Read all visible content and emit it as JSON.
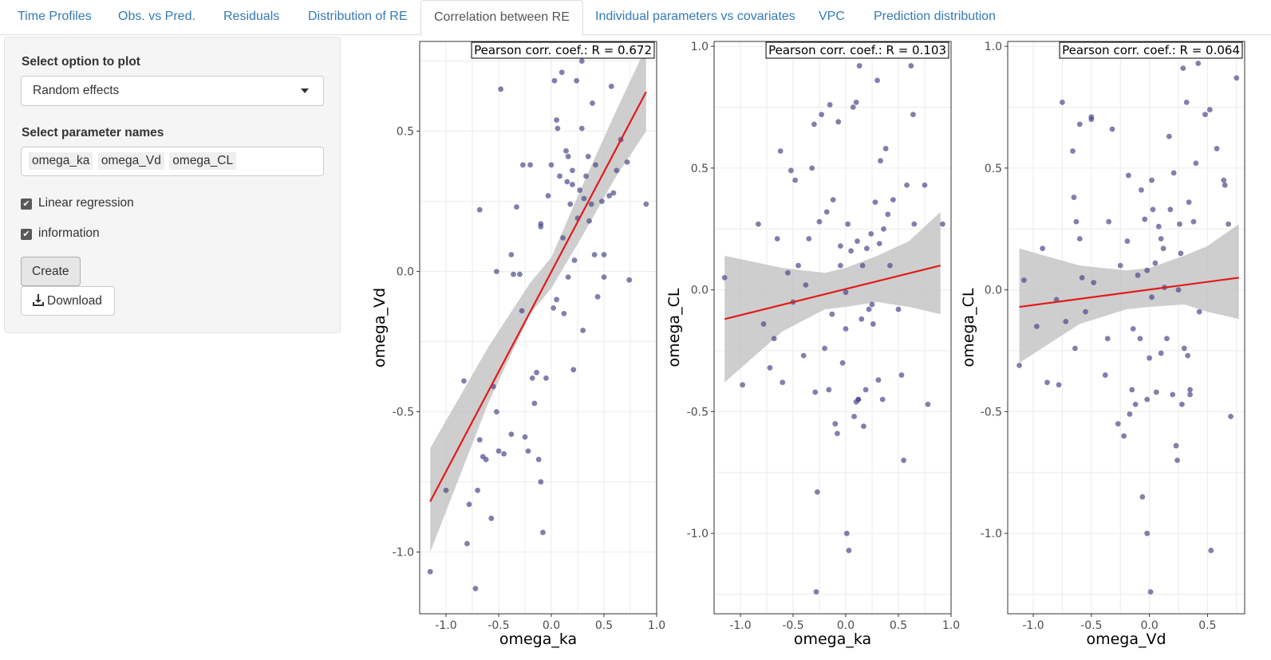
{
  "tabs": [
    {
      "label": "Time Profiles"
    },
    {
      "label": "Obs. vs Pred."
    },
    {
      "label": "Residuals"
    },
    {
      "label": "Distribution of RE"
    },
    {
      "label": "Correlation between RE"
    },
    {
      "label": "Individual parameters vs covariates"
    },
    {
      "label": "VPC"
    },
    {
      "label": "Prediction distribution"
    }
  ],
  "active_tab": "Correlation between RE",
  "sidebar": {
    "option_label": "Select option to plot",
    "option_value": "Random effects",
    "params_label": "Select parameter names",
    "params": [
      "omega_ka",
      "omega_Vd",
      "omega_CL"
    ],
    "linreg_label": "Linear regression",
    "linreg_checked": true,
    "info_label": "information",
    "info_checked": true,
    "create_label": "Create",
    "download_label": "Download"
  },
  "colors": {
    "points": "#4a4a8a",
    "regression_line": "#e31a1c",
    "confidence_band": "#bdbdbd",
    "link": "#337ab7"
  },
  "chart_data": [
    {
      "type": "scatter",
      "annotation": "Pearson corr. coef.: R = 0.672",
      "xlabel": "omega_ka",
      "ylabel": "omega_Vd",
      "xlim": [
        -1.25,
        1.0
      ],
      "ylim": [
        -1.22,
        0.82
      ],
      "xticks": [
        "-1.0",
        "-0.5",
        "0.0",
        "0.5",
        "1.0"
      ],
      "xtick_values": [
        -1.0,
        -0.5,
        0.0,
        0.5,
        1.0
      ],
      "yticks": [
        "-1.0",
        "-0.5",
        "0.0",
        "0.5"
      ],
      "ytick_values": [
        -1.0,
        -0.5,
        0.0,
        0.5
      ],
      "grid": true,
      "regression": {
        "x": [
          -1.15,
          0.9
        ],
        "y": [
          -0.82,
          0.64
        ]
      },
      "band_upper": [
        [
          -1.15,
          -0.63
        ],
        [
          -0.6,
          -0.27
        ],
        [
          -0.2,
          -0.04
        ],
        [
          0.0,
          0.05
        ],
        [
          0.3,
          0.31
        ],
        [
          0.6,
          0.56
        ],
        [
          0.9,
          0.8
        ]
      ],
      "band_lower": [
        [
          -1.15,
          -1.0
        ],
        [
          -0.6,
          -0.47
        ],
        [
          -0.2,
          -0.15
        ],
        [
          0.0,
          -0.06
        ],
        [
          0.3,
          0.13
        ],
        [
          0.6,
          0.33
        ],
        [
          0.9,
          0.5
        ]
      ],
      "points": [
        [
          -1.15,
          -1.07
        ],
        [
          -1.0,
          -0.78
        ],
        [
          -0.83,
          -0.39
        ],
        [
          -0.8,
          -0.97
        ],
        [
          -0.78,
          -0.83
        ],
        [
          -0.72,
          -1.13
        ],
        [
          -0.7,
          -0.78
        ],
        [
          -0.68,
          0.22
        ],
        [
          -0.68,
          -0.6
        ],
        [
          -0.65,
          -0.66
        ],
        [
          -0.62,
          -0.67
        ],
        [
          -0.57,
          -0.88
        ],
        [
          -0.55,
          -0.41
        ],
        [
          -0.52,
          -0.5
        ],
        [
          -0.5,
          -0.64
        ],
        [
          -0.48,
          0.65
        ],
        [
          -0.45,
          -0.65
        ],
        [
          -0.38,
          0.06
        ],
        [
          -0.36,
          -0.01
        ],
        [
          -0.33,
          0.23
        ],
        [
          -0.3,
          -0.01
        ],
        [
          -0.27,
          0.38
        ],
        [
          -0.25,
          -0.59
        ],
        [
          -0.22,
          -0.64
        ],
        [
          -0.2,
          0.38
        ],
        [
          -0.18,
          -0.38
        ],
        [
          -0.16,
          -0.47
        ],
        [
          -0.14,
          -0.36
        ],
        [
          -0.12,
          -0.67
        ],
        [
          -0.1,
          -0.75
        ],
        [
          -0.1,
          0.17
        ],
        [
          -0.08,
          -0.93
        ],
        [
          -0.05,
          -0.38
        ],
        [
          -0.03,
          0.27
        ],
        [
          0.0,
          0.38
        ],
        [
          0.02,
          -0.13
        ],
        [
          0.03,
          0.68
        ],
        [
          0.05,
          0.54
        ],
        [
          0.06,
          0.51
        ],
        [
          0.08,
          0.34
        ],
        [
          0.1,
          0.71
        ],
        [
          0.11,
          0.12
        ],
        [
          0.12,
          -0.15
        ],
        [
          0.14,
          0.43
        ],
        [
          0.15,
          0.32
        ],
        [
          0.16,
          0.41
        ],
        [
          0.18,
          0.24
        ],
        [
          0.2,
          0.31
        ],
        [
          0.2,
          0.36
        ],
        [
          0.21,
          -0.35
        ],
        [
          0.22,
          0.04
        ],
        [
          0.24,
          0.68
        ],
        [
          0.25,
          0.19
        ],
        [
          0.27,
          0.29
        ],
        [
          0.29,
          0.51
        ],
        [
          0.29,
          0.75
        ],
        [
          0.31,
          0.26
        ],
        [
          0.32,
          0.77
        ],
        [
          0.33,
          0.34
        ],
        [
          0.35,
          0.41
        ],
        [
          0.36,
          0.18
        ],
        [
          0.38,
          0.24
        ],
        [
          0.39,
          0.6
        ],
        [
          0.41,
          0.06
        ],
        [
          0.42,
          0.38
        ],
        [
          0.44,
          -0.09
        ],
        [
          0.48,
          0.25
        ],
        [
          0.5,
          0.06
        ],
        [
          0.55,
          0.27
        ],
        [
          0.57,
          0.66
        ],
        [
          0.59,
          0.28
        ],
        [
          0.62,
          0.36
        ],
        [
          0.66,
          0.47
        ],
        [
          0.72,
          0.39
        ],
        [
          0.74,
          -0.03
        ],
        [
          0.9,
          0.24
        ],
        [
          -0.38,
          -0.58
        ],
        [
          -0.52,
          0.0
        ],
        [
          -0.28,
          -0.14
        ],
        [
          -0.1,
          0.16
        ],
        [
          0.05,
          -0.1
        ],
        [
          0.16,
          -0.02
        ],
        [
          0.3,
          -0.21
        ],
        [
          0.5,
          -0.02
        ]
      ]
    },
    {
      "type": "scatter",
      "annotation": "Pearson corr. coef.: R = 0.103",
      "xlabel": "omega_ka",
      "ylabel": "omega_CL",
      "xlim": [
        -1.25,
        1.0
      ],
      "ylim": [
        -1.33,
        1.02
      ],
      "xticks": [
        "-1.0",
        "-0.5",
        "0.0",
        "0.5",
        "1.0"
      ],
      "xtick_values": [
        -1.0,
        -0.5,
        0.0,
        0.5,
        1.0
      ],
      "yticks": [
        "-1.0",
        "-0.5",
        "0.0",
        "0.5",
        "1.0"
      ],
      "ytick_values": [
        -1.0,
        -0.5,
        0.0,
        0.5,
        1.0
      ],
      "grid": true,
      "regression": {
        "x": [
          -1.15,
          0.9
        ],
        "y": [
          -0.12,
          0.1
        ]
      },
      "band_upper": [
        [
          -1.15,
          0.14
        ],
        [
          -0.6,
          0.09
        ],
        [
          -0.2,
          0.07
        ],
        [
          0.0,
          0.09
        ],
        [
          0.3,
          0.14
        ],
        [
          0.6,
          0.2
        ],
        [
          0.9,
          0.32
        ]
      ],
      "band_lower": [
        [
          -1.15,
          -0.38
        ],
        [
          -0.6,
          -0.17
        ],
        [
          -0.2,
          -0.08
        ],
        [
          0.0,
          -0.07
        ],
        [
          0.3,
          -0.05
        ],
        [
          0.6,
          -0.07
        ],
        [
          0.9,
          -0.1
        ]
      ],
      "points": [
        [
          -1.15,
          0.05
        ],
        [
          -0.98,
          -0.39
        ],
        [
          -0.83,
          0.27
        ],
        [
          -0.78,
          -0.14
        ],
        [
          -0.72,
          -0.32
        ],
        [
          -0.68,
          -0.2
        ],
        [
          -0.65,
          0.21
        ],
        [
          -0.62,
          0.57
        ],
        [
          -0.6,
          -0.38
        ],
        [
          -0.55,
          0.07
        ],
        [
          -0.52,
          0.49
        ],
        [
          -0.5,
          -0.05
        ],
        [
          -0.48,
          0.45
        ],
        [
          -0.45,
          0.1
        ],
        [
          -0.4,
          -0.27
        ],
        [
          -0.38,
          0.02
        ],
        [
          -0.35,
          0.21
        ],
        [
          -0.32,
          0.5
        ],
        [
          -0.3,
          0.68
        ],
        [
          -0.29,
          -0.42
        ],
        [
          -0.27,
          -0.83
        ],
        [
          -0.25,
          0.28
        ],
        [
          -0.23,
          0.72
        ],
        [
          -0.2,
          -0.24
        ],
        [
          -0.18,
          0.32
        ],
        [
          -0.16,
          -0.41
        ],
        [
          -0.15,
          0.76
        ],
        [
          -0.13,
          -0.1
        ],
        [
          -0.12,
          0.37
        ],
        [
          -0.1,
          -0.55
        ],
        [
          -0.08,
          -0.59
        ],
        [
          -0.07,
          0.69
        ],
        [
          -0.05,
          0.1
        ],
        [
          -0.03,
          -0.3
        ],
        [
          0.0,
          -0.16
        ],
        [
          0.01,
          -1.0
        ],
        [
          0.02,
          0.27
        ],
        [
          0.03,
          -1.07
        ],
        [
          0.05,
          0.16
        ],
        [
          0.07,
          0.75
        ],
        [
          0.08,
          -0.52
        ],
        [
          0.1,
          0.77
        ],
        [
          0.11,
          0.2
        ],
        [
          0.12,
          -0.45
        ],
        [
          0.13,
          0.92
        ],
        [
          0.15,
          -0.12
        ],
        [
          0.16,
          0.1
        ],
        [
          0.17,
          -0.56
        ],
        [
          0.19,
          -0.41
        ],
        [
          0.2,
          0.17
        ],
        [
          0.22,
          -0.08
        ],
        [
          0.24,
          0.23
        ],
        [
          0.26,
          -0.14
        ],
        [
          0.28,
          0.36
        ],
        [
          0.3,
          0.86
        ],
        [
          0.31,
          -0.37
        ],
        [
          0.32,
          0.19
        ],
        [
          0.33,
          0.53
        ],
        [
          0.35,
          -0.45
        ],
        [
          0.36,
          0.25
        ],
        [
          0.38,
          0.58
        ],
        [
          0.4,
          0.31
        ],
        [
          0.42,
          0.1
        ],
        [
          0.45,
          0.37
        ],
        [
          0.5,
          -0.08
        ],
        [
          0.53,
          -0.35
        ],
        [
          0.55,
          -0.7
        ],
        [
          0.58,
          0.43
        ],
        [
          0.62,
          0.92
        ],
        [
          0.64,
          0.72
        ],
        [
          0.65,
          0.27
        ],
        [
          0.75,
          0.43
        ],
        [
          0.78,
          -0.47
        ],
        [
          0.92,
          0.27
        ],
        [
          -0.28,
          -1.24
        ],
        [
          0.0,
          -0.01
        ],
        [
          0.12,
          -0.45
        ],
        [
          -0.05,
          0.18
        ],
        [
          0.25,
          -0.06
        ],
        [
          0.1,
          -0.46
        ]
      ]
    },
    {
      "type": "scatter",
      "annotation": "Pearson corr. coef.: R = 0.064",
      "xlabel": "omega_Vd",
      "ylabel": "omega_CL",
      "xlim": [
        -1.22,
        0.82
      ],
      "ylim": [
        -1.33,
        1.02
      ],
      "xticks": [
        "-1.0",
        "-0.5",
        "0.0",
        "0.5"
      ],
      "xtick_values": [
        -1.0,
        -0.5,
        0.0,
        0.5
      ],
      "yticks": [
        "-1.0",
        "-0.5",
        "0.0",
        "0.5",
        "1.0"
      ],
      "ytick_values": [
        -1.0,
        -0.5,
        0.0,
        0.5,
        1.0
      ],
      "grid": true,
      "regression": {
        "x": [
          -1.12,
          0.77
        ],
        "y": [
          -0.07,
          0.05
        ]
      },
      "band_upper": [
        [
          -1.12,
          0.17
        ],
        [
          -0.6,
          0.1
        ],
        [
          -0.2,
          0.08
        ],
        [
          0.0,
          0.09
        ],
        [
          0.3,
          0.14
        ],
        [
          0.5,
          0.18
        ],
        [
          0.77,
          0.27
        ]
      ],
      "band_lower": [
        [
          -1.12,
          -0.3
        ],
        [
          -0.6,
          -0.14
        ],
        [
          -0.2,
          -0.08
        ],
        [
          0.0,
          -0.07
        ],
        [
          0.3,
          -0.06
        ],
        [
          0.5,
          -0.09
        ],
        [
          0.77,
          -0.12
        ]
      ],
      "points": [
        [
          -1.12,
          -0.31
        ],
        [
          -1.08,
          0.04
        ],
        [
          -0.97,
          -0.15
        ],
        [
          -0.92,
          0.17
        ],
        [
          -0.88,
          -0.38
        ],
        [
          -0.8,
          -0.04
        ],
        [
          -0.78,
          -0.39
        ],
        [
          -0.75,
          0.77
        ],
        [
          -0.72,
          -0.13
        ],
        [
          -0.66,
          0.57
        ],
        [
          -0.65,
          0.38
        ],
        [
          -0.64,
          -0.24
        ],
        [
          -0.63,
          0.28
        ],
        [
          -0.6,
          0.68
        ],
        [
          -0.6,
          0.21
        ],
        [
          -0.58,
          0.05
        ],
        [
          -0.55,
          -0.09
        ],
        [
          -0.5,
          0.71
        ],
        [
          -0.5,
          0.7
        ],
        [
          -0.48,
          0.03
        ],
        [
          -0.38,
          -0.35
        ],
        [
          -0.36,
          -0.2
        ],
        [
          -0.35,
          0.28
        ],
        [
          -0.32,
          0.66
        ],
        [
          -0.27,
          -0.55
        ],
        [
          -0.25,
          0.1
        ],
        [
          -0.22,
          -0.6
        ],
        [
          -0.19,
          0.2
        ],
        [
          -0.17,
          -0.51
        ],
        [
          -0.15,
          -0.41
        ],
        [
          -0.14,
          -0.16
        ],
        [
          -0.12,
          -0.47
        ],
        [
          -0.1,
          0.06
        ],
        [
          -0.08,
          -0.2
        ],
        [
          -0.07,
          0.41
        ],
        [
          -0.06,
          -0.85
        ],
        [
          -0.04,
          0.29
        ],
        [
          -0.02,
          -0.45
        ],
        [
          -0.02,
          -1.0
        ],
        [
          0.0,
          -0.28
        ],
        [
          0.01,
          -1.24
        ],
        [
          0.02,
          -0.03
        ],
        [
          0.03,
          0.33
        ],
        [
          0.05,
          0.11
        ],
        [
          0.06,
          -0.42
        ],
        [
          0.08,
          0.26
        ],
        [
          0.1,
          -0.26
        ],
        [
          0.12,
          0.17
        ],
        [
          0.13,
          0.01
        ],
        [
          0.15,
          -0.2
        ],
        [
          0.17,
          0.63
        ],
        [
          0.2,
          -0.43
        ],
        [
          0.21,
          0.48
        ],
        [
          0.23,
          -0.64
        ],
        [
          0.24,
          -0.7
        ],
        [
          0.25,
          0.0
        ],
        [
          0.26,
          0.27
        ],
        [
          0.27,
          0.15
        ],
        [
          0.28,
          -0.47
        ],
        [
          0.29,
          0.91
        ],
        [
          0.3,
          -0.24
        ],
        [
          0.32,
          0.77
        ],
        [
          0.33,
          -0.27
        ],
        [
          0.34,
          0.36
        ],
        [
          0.35,
          -0.43
        ],
        [
          0.38,
          0.28
        ],
        [
          0.4,
          0.52
        ],
        [
          0.42,
          0.93
        ],
        [
          0.43,
          -0.09
        ],
        [
          0.48,
          0.72
        ],
        [
          0.52,
          0.74
        ],
        [
          0.53,
          -1.07
        ],
        [
          0.58,
          0.58
        ],
        [
          0.64,
          0.45
        ],
        [
          0.65,
          0.43
        ],
        [
          0.7,
          -0.52
        ],
        [
          0.75,
          0.87
        ],
        [
          0.68,
          0.27
        ],
        [
          0.35,
          -0.41
        ],
        [
          0.18,
          0.33
        ],
        [
          -0.02,
          0.08
        ],
        [
          0.1,
          0.21
        ],
        [
          0.02,
          0.45
        ],
        [
          -0.18,
          0.47
        ]
      ]
    }
  ]
}
